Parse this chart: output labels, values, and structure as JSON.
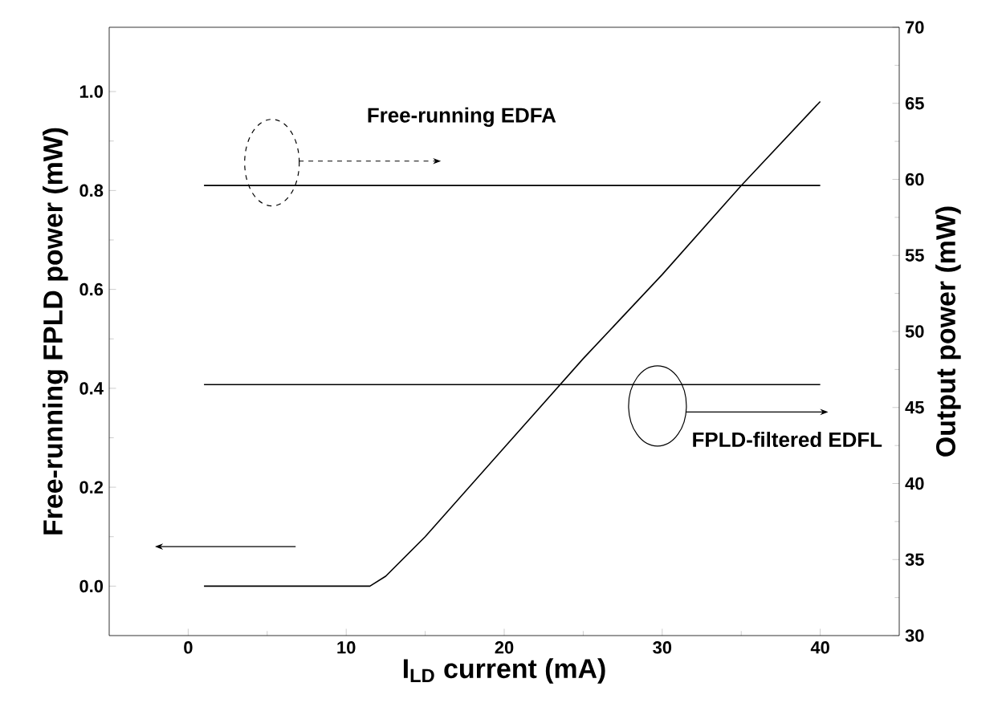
{
  "chart_data": {
    "type": "line",
    "xlabel": "I$_{LD}$ current (mA)",
    "ylabel": "Free-running FPLD power (mW)",
    "y2label": "Output power (mW)",
    "xlim": [
      -5,
      45
    ],
    "xticks": [
      0,
      10,
      20,
      30,
      40
    ],
    "ylim": [
      -0.1,
      1.13
    ],
    "yticks": [
      {
        "value": 0,
        "label": "0.0"
      },
      {
        "value": 0.2,
        "label": "0.2"
      },
      {
        "value": 0.4,
        "label": "0.4"
      },
      {
        "value": 0.6,
        "label": "0.6"
      },
      {
        "value": 0.8,
        "label": "0.8"
      },
      {
        "value": 1,
        "label": "1.0"
      }
    ],
    "y2lim": [
      30,
      70
    ],
    "y2ticks": [
      30,
      35,
      40,
      45,
      50,
      55,
      60,
      65,
      70
    ],
    "marker": "none",
    "line_style": "solid",
    "legend": false,
    "series": [
      {
        "color": "#000000",
        "x": [
          1,
          11.5,
          12.5,
          15,
          20,
          25,
          30,
          35,
          40
        ],
        "values": [
          0,
          0,
          0.02,
          0.1,
          0.28,
          0.46,
          0.63,
          0.81,
          0.98
        ]
      },
      {
        "name": "Free-running EDFA",
        "axis": "y2",
        "color": "#000000",
        "x": [
          1,
          40
        ],
        "values": [
          59.6,
          59.6
        ]
      },
      {
        "name": "FPLD-filtered EDFL",
        "axis": "y2",
        "color": "#000000",
        "x": [
          1,
          40
        ],
        "values": [
          46.5,
          46.5
        ]
      }
    ]
  }
}
